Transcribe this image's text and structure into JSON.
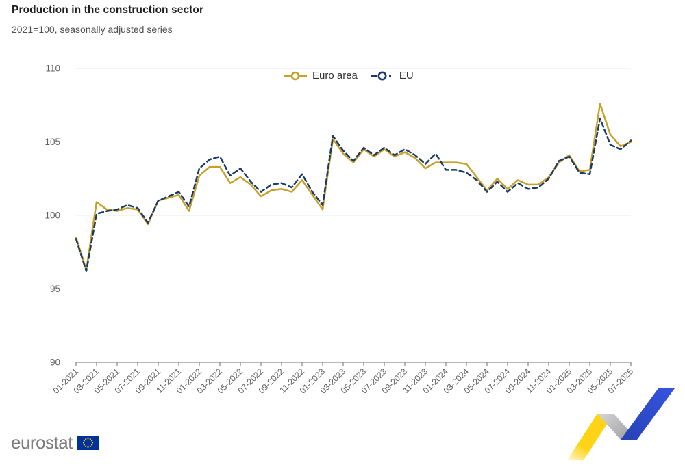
{
  "header": {
    "title": "Production in the construction sector",
    "subtitle": "2021=100, seasonally adjusted series"
  },
  "legend": {
    "items": [
      "Euro area",
      "EU"
    ]
  },
  "chart_data": {
    "type": "line",
    "title": "Production in the construction sector",
    "subtitle": "2021=100, seasonally adjusted series",
    "x": [
      "01-2021",
      "02-2021",
      "03-2021",
      "04-2021",
      "05-2021",
      "06-2021",
      "07-2021",
      "08-2021",
      "09-2021",
      "10-2021",
      "11-2021",
      "12-2021",
      "01-2022",
      "02-2022",
      "03-2022",
      "04-2022",
      "05-2022",
      "06-2022",
      "07-2022",
      "08-2022",
      "09-2022",
      "10-2022",
      "11-2022",
      "12-2022",
      "01-2023",
      "02-2023",
      "03-2023",
      "04-2023",
      "05-2023",
      "06-2023",
      "07-2023",
      "08-2023",
      "09-2023",
      "10-2023",
      "11-2023",
      "12-2023",
      "01-2024",
      "02-2024",
      "03-2024",
      "04-2024",
      "05-2024",
      "06-2024",
      "07-2024",
      "08-2024",
      "09-2024",
      "10-2024",
      "11-2024",
      "12-2024",
      "01-2025",
      "02-2025",
      "03-2025",
      "04-2025",
      "05-2025",
      "06-2025",
      "07-2025"
    ],
    "x_label_every": 2,
    "yticks": [
      90,
      95,
      100,
      105,
      110
    ],
    "ylim": [
      90,
      110
    ],
    "grid": true,
    "legend_position": "top-center",
    "series": [
      {
        "name": "Euro area",
        "color": "#C6A028",
        "style": "solid",
        "values": [
          98.5,
          96.3,
          100.9,
          100.4,
          100.3,
          100.5,
          100.4,
          99.4,
          101.0,
          101.2,
          101.4,
          100.3,
          102.7,
          103.3,
          103.3,
          102.2,
          102.6,
          102.1,
          101.3,
          101.7,
          101.8,
          101.6,
          102.4,
          101.4,
          100.4,
          105.2,
          104.2,
          103.6,
          104.5,
          104.0,
          104.5,
          104.0,
          104.3,
          103.9,
          103.2,
          103.6,
          103.6,
          103.6,
          103.5,
          102.6,
          101.7,
          102.5,
          101.8,
          102.4,
          102.1,
          102.1,
          102.6,
          103.6,
          104.1,
          103.0,
          103.1,
          107.6,
          105.5,
          104.7,
          105.0
        ]
      },
      {
        "name": "EU",
        "color": "#1B3A68",
        "style": "dashed",
        "values": [
          98.4,
          96.2,
          100.1,
          100.3,
          100.4,
          100.7,
          100.5,
          99.5,
          101.0,
          101.3,
          101.6,
          100.6,
          103.2,
          103.8,
          104.0,
          102.7,
          103.2,
          102.3,
          101.6,
          102.1,
          102.2,
          101.9,
          102.8,
          101.6,
          100.7,
          105.4,
          104.4,
          103.7,
          104.6,
          104.1,
          104.6,
          104.1,
          104.5,
          104.1,
          103.5,
          104.2,
          103.1,
          103.1,
          102.9,
          102.4,
          101.6,
          102.3,
          101.6,
          102.2,
          101.8,
          101.9,
          102.5,
          103.7,
          104.0,
          102.9,
          102.8,
          106.6,
          104.8,
          104.5,
          105.1
        ]
      }
    ]
  },
  "colors": {
    "grid": "#e8e8e8",
    "axis": "#8c8c8c",
    "tick_label": "#5f5f5f",
    "flag_blue": "#003399",
    "flag_star": "#ffcc00",
    "ribbon_yellow": "#FFD416",
    "ribbon_gray": "#BDBDBD",
    "ribbon_blue": "#2F4DCE"
  },
  "footer": {
    "logo_text": "eurostat"
  }
}
